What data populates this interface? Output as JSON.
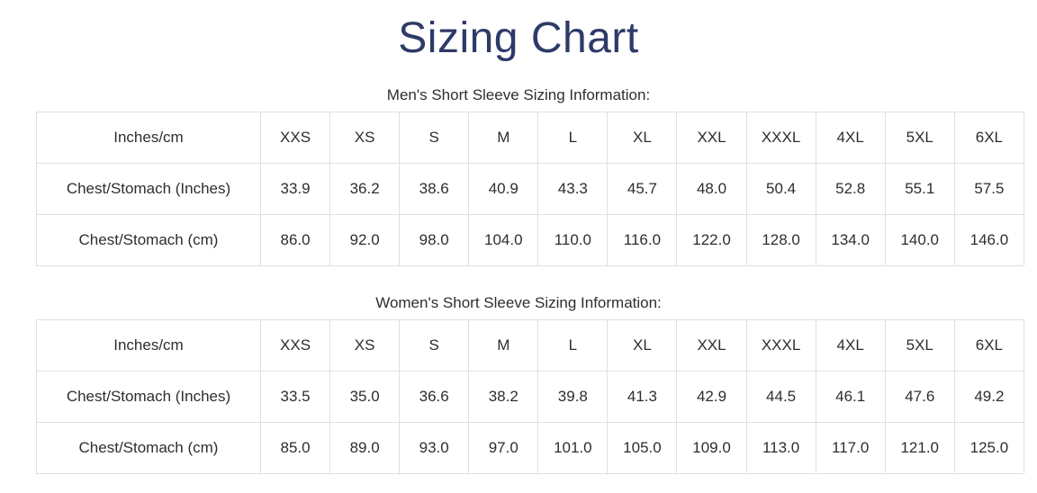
{
  "page": {
    "title": "Sizing Chart"
  },
  "colors": {
    "title_navy": "#2e3a67",
    "body_text": "#2e2e2e",
    "table_border": "#e0e0e0",
    "page_bg": "#ffffff"
  },
  "sections": [
    {
      "subtitle": "Men's Short Sleeve Sizing Information:",
      "table": {
        "header": [
          "Inches/cm",
          "XXS",
          "XS",
          "S",
          "M",
          "L",
          "XL",
          "XXL",
          "XXXL",
          "4XL",
          "5XL",
          "6XL"
        ],
        "rows": [
          [
            "Chest/Stomach (Inches)",
            "33.9",
            "36.2",
            "38.6",
            "40.9",
            "43.3",
            "45.7",
            "48.0",
            "50.4",
            "52.8",
            "55.1",
            "57.5"
          ],
          [
            "Chest/Stomach (cm)",
            "86.0",
            "92.0",
            "98.0",
            "104.0",
            "110.0",
            "116.0",
            "122.0",
            "128.0",
            "134.0",
            "140.0",
            "146.0"
          ]
        ]
      }
    },
    {
      "subtitle": "Women's Short Sleeve Sizing Information:",
      "table": {
        "header": [
          "Inches/cm",
          "XXS",
          "XS",
          "S",
          "M",
          "L",
          "XL",
          "XXL",
          "XXXL",
          "4XL",
          "5XL",
          "6XL"
        ],
        "rows": [
          [
            "Chest/Stomach (Inches)",
            "33.5",
            "35.0",
            "36.6",
            "38.2",
            "39.8",
            "41.3",
            "42.9",
            "44.5",
            "46.1",
            "47.6",
            "49.2"
          ],
          [
            "Chest/Stomach (cm)",
            "85.0",
            "89.0",
            "93.0",
            "97.0",
            "101.0",
            "105.0",
            "109.0",
            "113.0",
            "117.0",
            "121.0",
            "125.0"
          ]
        ]
      }
    }
  ]
}
